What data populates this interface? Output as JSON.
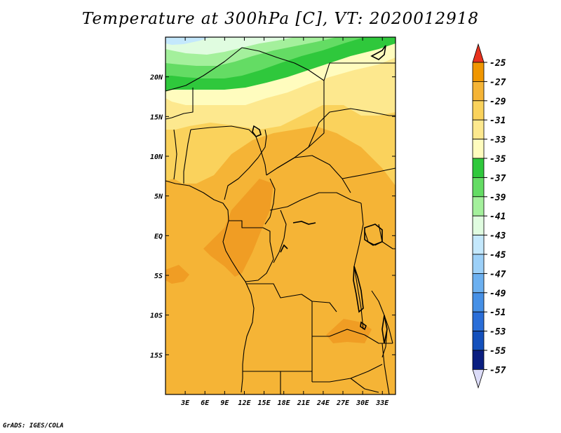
{
  "title": "Temperature at 300hPa [C], VT: 2020012918",
  "credit": "GrADS: IGES/COLA",
  "map": {
    "lon_range": [
      0,
      35
    ],
    "lat_range": [
      -20,
      25
    ],
    "x_ticks": [
      "3E",
      "6E",
      "9E",
      "12E",
      "15E",
      "18E",
      "21E",
      "24E",
      "27E",
      "30E",
      "33E"
    ],
    "y_ticks": [
      "20N",
      "15N",
      "10N",
      "5N",
      "EQ",
      "5S",
      "10S",
      "15S"
    ]
  },
  "colorbar": {
    "labels": [
      "-25",
      "-27",
      "-29",
      "-31",
      "-33",
      "-35",
      "-37",
      "-39",
      "-41",
      "-43",
      "-45",
      "-47",
      "-49",
      "-51",
      "-53",
      "-55",
      "-57"
    ],
    "colors": [
      "#ff5a00",
      "#f09600",
      "#f5b436",
      "#fad25c",
      "#fde88e",
      "#fffcbe",
      "#2fc83c",
      "#64dc64",
      "#a4f09c",
      "#e0fce0",
      "#c4e8fc",
      "#9cd0f8",
      "#6cb0f0",
      "#4690e6",
      "#2a6ed8",
      "#1450bc",
      "#0a1e80",
      "#dcdcf8"
    ],
    "top_arrow_color": "#e8321e",
    "bottom_arrow_color": "#dcdcf8"
  }
}
